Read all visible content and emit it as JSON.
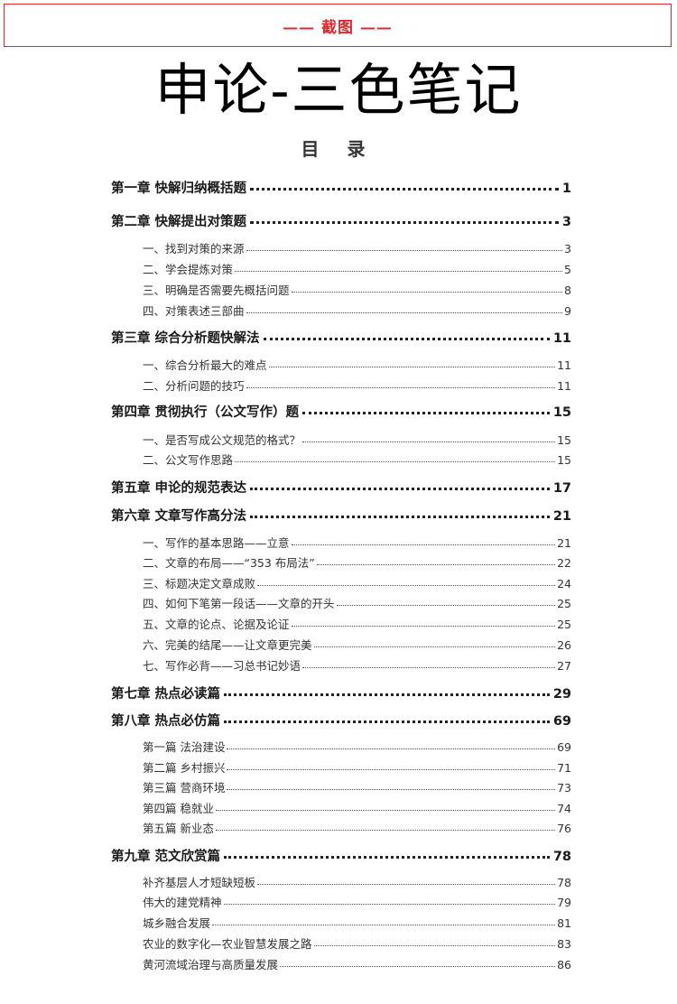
{
  "banner": {
    "label": "—— 截图 ——",
    "color": "#e3262e"
  },
  "title": "申论-三色笔记",
  "toc_heading": "目 录",
  "toc": [
    {
      "level": "chapter",
      "title": "第一章  快解归纳概括题",
      "page": "1"
    },
    {
      "level": "chapter",
      "title": "第二章  快解提出对策题",
      "page": "3"
    },
    {
      "level": "section",
      "title": "一、找到对策的来源",
      "page": "3"
    },
    {
      "level": "section",
      "title": "二、学会提炼对策",
      "page": "5"
    },
    {
      "level": "section",
      "title": "三、明确是否需要先概括问题",
      "page": "8"
    },
    {
      "level": "section",
      "title": "四、对策表述三部曲",
      "page": "9"
    },
    {
      "level": "chapter",
      "title": "第三章  综合分析题快解法",
      "page": "11"
    },
    {
      "level": "section",
      "title": "一、综合分析最大的难点",
      "page": "11"
    },
    {
      "level": "section",
      "title": "二、分析问题的技巧",
      "page": "11"
    },
    {
      "level": "chapter",
      "title": "第四章  贯彻执行（公文写作）题",
      "page": "15"
    },
    {
      "level": "section",
      "title": "一、是否写成公文规范的格式？",
      "page": "15"
    },
    {
      "level": "section",
      "title": "二、公文写作思路",
      "page": "15"
    },
    {
      "level": "chapter",
      "title": "第五章  申论的规范表达",
      "page": "17"
    },
    {
      "level": "chapter",
      "title": "第六章  文章写作高分法",
      "page": "21"
    },
    {
      "level": "section",
      "title": "一、写作的基本思路——立意",
      "page": "21"
    },
    {
      "level": "section",
      "title": "二、文章的布局——“353 布局法”",
      "page": "22"
    },
    {
      "level": "section",
      "title": "三、标题决定文章成败",
      "page": "24"
    },
    {
      "level": "section",
      "title": "四、如何下笔第一段话——文章的开头",
      "page": "25"
    },
    {
      "level": "section",
      "title": "五、文章的论点、论据及论证",
      "page": "25"
    },
    {
      "level": "section",
      "title": "六、完美的结尾——让文章更完美",
      "page": "26"
    },
    {
      "level": "section",
      "title": "七、写作必背——习总书记妙语",
      "page": "27"
    },
    {
      "level": "chapter",
      "title": "第七章  热点必读篇",
      "page": "29"
    },
    {
      "level": "chapter",
      "title": "第八章  热点必仿篇",
      "page": "69"
    },
    {
      "level": "section",
      "title": "第一篇 法治建设",
      "page": "69"
    },
    {
      "level": "section",
      "title": "第二篇 乡村振兴",
      "page": "71"
    },
    {
      "level": "section",
      "title": "第三篇 营商环境",
      "page": "73"
    },
    {
      "level": "section",
      "title": "第四篇 稳就业",
      "page": "74"
    },
    {
      "level": "section",
      "title": "第五篇 新业态",
      "page": "76"
    },
    {
      "level": "chapter",
      "title": "第九章  范文欣赏篇",
      "page": "78"
    },
    {
      "level": "section",
      "title": "补齐基层人才短缺短板",
      "page": "78"
    },
    {
      "level": "section",
      "title": "伟大的建党精神",
      "page": "79"
    },
    {
      "level": "section",
      "title": "城乡融合发展",
      "page": "81"
    },
    {
      "level": "section",
      "title": "农业的数字化—农业智慧发展之路",
      "page": "83"
    },
    {
      "level": "section",
      "title": "黄河流域治理与高质量发展",
      "page": "86"
    }
  ]
}
